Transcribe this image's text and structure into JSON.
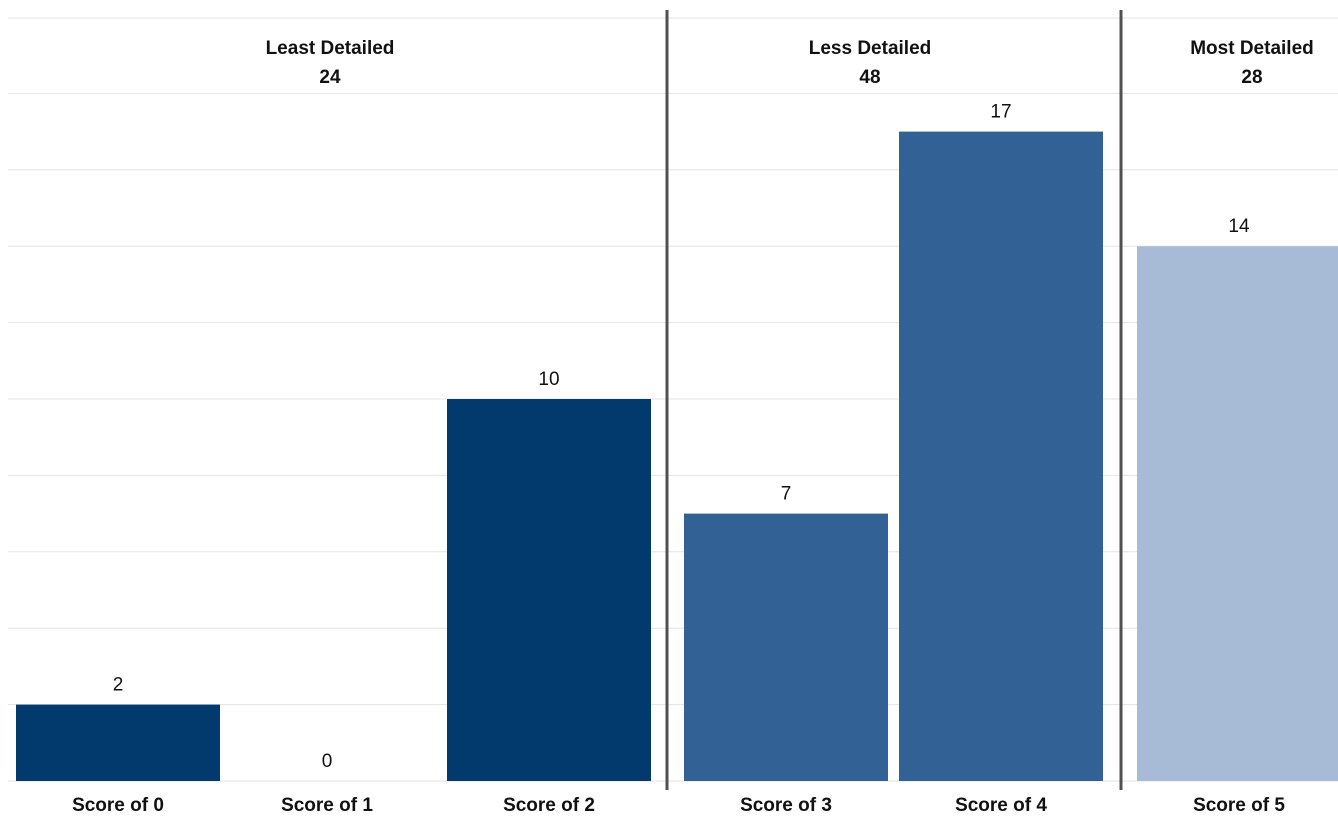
{
  "chart_data": {
    "type": "bar",
    "categories": [
      "Score of 0",
      "Score of 1",
      "Score of 2",
      "Score of 3",
      "Score of 4",
      "Score of 5"
    ],
    "values": [
      2,
      0,
      10,
      7,
      17,
      14
    ],
    "groups": [
      {
        "name": "Least Detailed",
        "total": "24",
        "categories": [
          "Score of 0",
          "Score of 1",
          "Score of 2"
        ],
        "color": "#023a6e"
      },
      {
        "name": "Less Detailed",
        "total": "48",
        "categories": [
          "Score of 3",
          "Score of 4"
        ],
        "color": "#326295"
      },
      {
        "name": "Most Detailed",
        "total": "28",
        "categories": [
          "Score of 5"
        ],
        "color": "#a7bbd6"
      }
    ],
    "ylim": [
      0,
      18
    ],
    "grid": true,
    "data_labels": true,
    "title": "",
    "xlabel": "",
    "ylabel": ""
  }
}
